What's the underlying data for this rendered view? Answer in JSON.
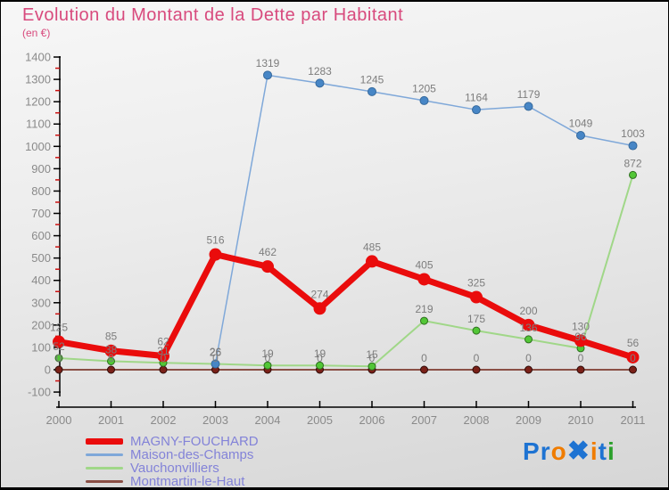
{
  "title": "Evolution du Montant de la Dette par Habitant",
  "subtitle": "(en €)",
  "colors": {
    "title": "#d84a7d",
    "axis": "#000000",
    "minor_tick": "#cc1111",
    "tick_label": "#8a8a8a",
    "value_label": "#7d7d7d",
    "legend_text": "#8383d8"
  },
  "chart_data": {
    "type": "line",
    "x": [
      2000,
      2001,
      2002,
      2003,
      2004,
      2005,
      2006,
      2007,
      2008,
      2009,
      2010,
      2011
    ],
    "series": [
      {
        "name": "Montmartin-le-Haut",
        "line_color": "#8a4f45",
        "dot_color": "#7a2018",
        "dot_stroke": "#2e0b08",
        "line_width": 2,
        "dot_radius": 4,
        "values": [
          0,
          0,
          0,
          0,
          0,
          0,
          0,
          0,
          0,
          0,
          0,
          0
        ]
      },
      {
        "name": "Vauchonvilliers",
        "line_color": "#a0d788",
        "dot_color": "#52c636",
        "dot_stroke": "#2c6e1d",
        "line_width": 2,
        "dot_radius": 4,
        "values": [
          52,
          38,
          31,
          26,
          19,
          19,
          15,
          219,
          175,
          136,
          96,
          872
        ]
      },
      {
        "name": "Maison-des-Champs",
        "line_color": "#7fa8d9",
        "dot_color": "#4786c6",
        "dot_stroke": "#36699c",
        "line_width": 1.5,
        "dot_radius": 4.5,
        "values": [
          null,
          null,
          null,
          26,
          1319,
          1283,
          1245,
          1205,
          1164,
          1179,
          1049,
          1003
        ]
      },
      {
        "name": "MAGNY-FOUCHARD",
        "line_color": "#ea0c0c",
        "dot_color": "#ea0c0c",
        "dot_stroke": "none",
        "line_width": 7,
        "dot_radius": 7,
        "values": [
          125,
          85,
          62,
          516,
          462,
          274,
          485,
          405,
          325,
          200,
          130,
          56
        ]
      }
    ],
    "ylim": [
      -100,
      1400
    ],
    "y_tick_step": 100,
    "y_minor_tick_step": 50,
    "grid": false,
    "legend_position": "bottom-left"
  },
  "legend": [
    {
      "label": "MAGNY-FOUCHARD",
      "color": "#ea0c0c",
      "thickness": 7
    },
    {
      "label": "Maison-des-Champs",
      "color": "#7fa8d9",
      "thickness": 3
    },
    {
      "label": "Vauchonvilliers",
      "color": "#a0d788",
      "thickness": 3
    },
    {
      "label": "Montmartin-le-Haut",
      "color": "#8a4f45",
      "thickness": 3
    }
  ],
  "logo": {
    "text": "Proxiti",
    "letters": [
      {
        "ch": "P",
        "color": "#1e73d2",
        "big": false
      },
      {
        "ch": "r",
        "color": "#1e73d2",
        "big": false
      },
      {
        "ch": "o",
        "color": "#f07c00",
        "big": false
      },
      {
        "ch": "✖",
        "color": "#1e73d2",
        "big": true
      },
      {
        "ch": "i",
        "color": "#f07c00",
        "big": false
      },
      {
        "ch": "t",
        "color": "#1e73d2",
        "big": false
      },
      {
        "ch": "i",
        "color": "#2ca02c",
        "big": false
      }
    ]
  }
}
